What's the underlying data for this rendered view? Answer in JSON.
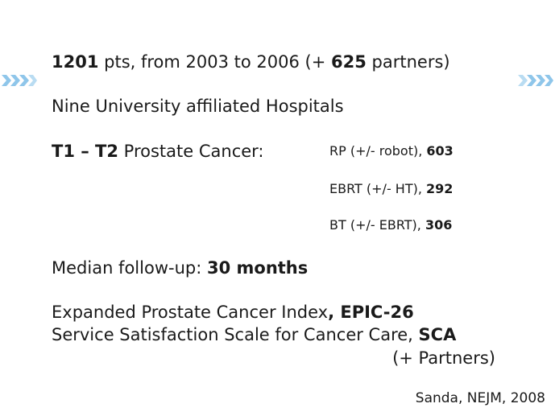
{
  "line1": {
    "n_pts": "1201",
    "pts_text": " pts, from 2003 to 2006 (+ ",
    "n_partners": "625",
    "partners_text": " partners)"
  },
  "line2": "Nine University affiliated Hospitals",
  "line3": {
    "stage": "T1 – T2",
    "label": " Prostate Cancer:"
  },
  "treatments": [
    {
      "label": "RP (+/- robot), ",
      "count": "603"
    },
    {
      "label": "EBRT (+/- HT), ",
      "count": "292"
    },
    {
      "label": "BT (+/- EBRT), ",
      "count": "306"
    }
  ],
  "followup": {
    "label": "Median follow-up: ",
    "value": "30 months"
  },
  "instruments": [
    {
      "label": "Expanded Prostate Cancer Index",
      "abbr": ", EPIC-26"
    },
    {
      "label": "Service Satisfaction Scale for Cancer Care, ",
      "abbr": "SCA"
    }
  ],
  "partners_note": "(+ Partners)",
  "citation": "Sanda, NEJM, 2008",
  "colors": {
    "chevron": "#8fc6ea",
    "text": "#1a1a1a"
  }
}
